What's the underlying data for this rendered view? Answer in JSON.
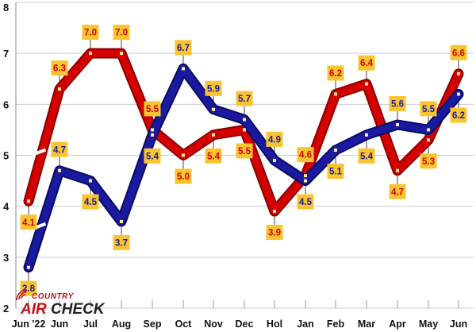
{
  "logo": {
    "top": "COUNTRY",
    "air": "AIR",
    "check": "CHECK"
  },
  "chart_data": {
    "type": "line",
    "title": "",
    "xlabel": "",
    "ylabel": "",
    "ylim": [
      2,
      8
    ],
    "yticks": [
      "2",
      "3",
      "4",
      "5",
      "6",
      "7",
      "8"
    ],
    "categories": [
      "Jun '22",
      "Jun",
      "Jul",
      "Aug",
      "Sep",
      "Oct",
      "Nov",
      "Dec",
      "Hol",
      "Jan",
      "Feb",
      "Mar",
      "Apr",
      "May",
      "Jun"
    ],
    "grid": "horizontal",
    "series": [
      {
        "color": "#d40000",
        "values": [
          4.1,
          6.3,
          7.0,
          7.0,
          5.5,
          5.0,
          5.4,
          5.5,
          3.9,
          4.6,
          6.2,
          6.4,
          4.7,
          5.3,
          6.6
        ],
        "labels": [
          "4.1",
          "6.3",
          "7.0",
          "7.0",
          "5.5",
          "5.0",
          "5.4",
          "5.5",
          "3.9",
          "4.6",
          "6.2",
          "6.4",
          "4.7",
          "5.3",
          "6.6"
        ]
      },
      {
        "color": "#1a1aa0",
        "values": [
          2.8,
          4.7,
          4.5,
          3.7,
          5.4,
          6.7,
          5.9,
          5.7,
          4.9,
          4.5,
          5.1,
          5.4,
          5.6,
          5.5,
          6.2
        ],
        "labels": [
          "2.8",
          "4.7",
          "4.5",
          "3.7",
          "5.4",
          "6.7",
          "5.9",
          "5.7",
          "4.9",
          "4.5",
          "5.1",
          "5.4",
          "5.6",
          "5.5",
          "6.2"
        ]
      }
    ],
    "colors": {
      "label_box": "#f9c430",
      "marker": "#ffe9a0",
      "grid": "#cccccc"
    }
  }
}
